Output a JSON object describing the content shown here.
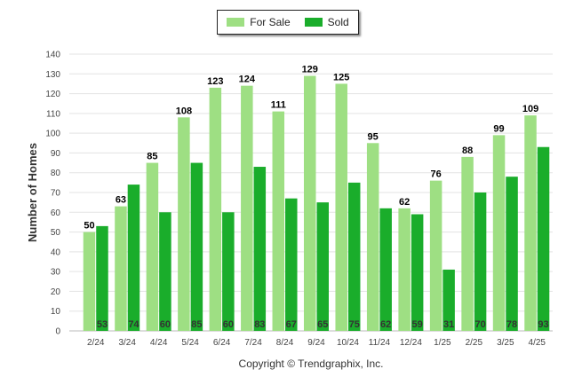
{
  "chart_data": {
    "type": "bar",
    "categories": [
      "2/24",
      "3/24",
      "4/24",
      "5/24",
      "6/24",
      "7/24",
      "8/24",
      "9/24",
      "10/24",
      "11/24",
      "12/24",
      "1/25",
      "2/25",
      "3/25",
      "4/25"
    ],
    "series": [
      {
        "name": "For Sale",
        "values": [
          50,
          63,
          85,
          108,
          123,
          124,
          111,
          129,
          125,
          95,
          62,
          76,
          88,
          99,
          109
        ],
        "color": "#9edf83"
      },
      {
        "name": "Sold",
        "values": [
          53,
          74,
          60,
          85,
          60,
          83,
          67,
          65,
          75,
          62,
          59,
          31,
          70,
          78,
          93
        ],
        "color": "#1aad2b"
      }
    ],
    "ylabel": "Number of Homes",
    "xlabel": "",
    "ylim": [
      0,
      140
    ],
    "yticks": [
      0,
      10,
      20,
      30,
      40,
      50,
      60,
      70,
      80,
      90,
      100,
      110,
      120,
      130,
      140
    ],
    "legend_position": "top-center",
    "grid": true
  },
  "footer": {
    "copyright": "Copyright © Trendgraphix, Inc."
  }
}
